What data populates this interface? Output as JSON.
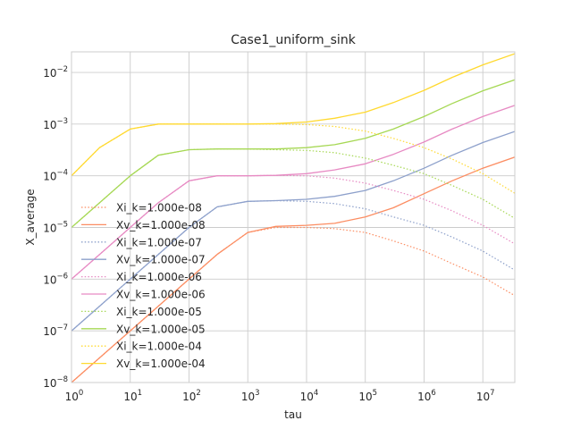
{
  "chart_data": {
    "type": "line",
    "title": "Case1_uniform_sink",
    "xlabel": "tau",
    "ylabel": "X_average",
    "xscale": "log",
    "yscale": "log",
    "xlim": [
      1,
      35000000
    ],
    "ylim": [
      1e-08,
      0.025
    ],
    "grid": true,
    "legend_position": "center-left",
    "x_ticks": [
      {
        "base": "10",
        "exp": "0"
      },
      {
        "base": "10",
        "exp": "1"
      },
      {
        "base": "10",
        "exp": "2"
      },
      {
        "base": "10",
        "exp": "3"
      },
      {
        "base": "10",
        "exp": "4"
      },
      {
        "base": "10",
        "exp": "5"
      },
      {
        "base": "10",
        "exp": "6"
      },
      {
        "base": "10",
        "exp": "7"
      }
    ],
    "y_ticks": [
      {
        "base": "10",
        "exp": "−8"
      },
      {
        "base": "10",
        "exp": "−7"
      },
      {
        "base": "10",
        "exp": "−6"
      },
      {
        "base": "10",
        "exp": "−5"
      },
      {
        "base": "10",
        "exp": "−4"
      },
      {
        "base": "10",
        "exp": "−3"
      },
      {
        "base": "10",
        "exp": "−2"
      }
    ],
    "x_tick_values": [
      1,
      10,
      100,
      1000,
      10000,
      100000,
      1000000,
      10000000
    ],
    "y_tick_values": [
      1e-08,
      1e-07,
      1e-06,
      1e-05,
      0.0001,
      0.001,
      0.01
    ],
    "x": [
      1,
      3,
      10,
      30,
      100,
      300,
      1000,
      3000,
      10000,
      30000,
      100000,
      300000,
      1000000,
      3000000,
      10000000,
      35000000
    ],
    "series": [
      {
        "name": "Xi_k=1.000e-08",
        "style": "dotted",
        "color": "#fc8d62",
        "values": [
          1e-08,
          3e-08,
          1e-07,
          3e-07,
          1e-06,
          3e-06,
          8e-06,
          1e-05,
          1e-05,
          9.5e-06,
          8e-06,
          5.5e-06,
          3.5e-06,
          2e-06,
          1.1e-06,
          4.8e-07
        ]
      },
      {
        "name": "Xv_k=1.000e-08",
        "style": "solid",
        "color": "#fc8d62",
        "values": [
          1e-08,
          3e-08,
          1e-07,
          3e-07,
          1e-06,
          3e-06,
          8e-06,
          1.05e-05,
          1.1e-05,
          1.2e-05,
          1.6e-05,
          2.4e-05,
          4.5e-05,
          8e-05,
          0.00014,
          0.00023
        ]
      },
      {
        "name": "Xi_k=1.000e-07",
        "style": "dotted",
        "color": "#8da0cb",
        "values": [
          1e-07,
          3e-07,
          1e-06,
          3e-06,
          1e-05,
          2.5e-05,
          3.2e-05,
          3.3e-05,
          3.2e-05,
          2.9e-05,
          2.3e-05,
          1.6e-05,
          1.1e-05,
          6.5e-06,
          3.5e-06,
          1.5e-06
        ]
      },
      {
        "name": "Xv_k=1.000e-07",
        "style": "solid",
        "color": "#8da0cb",
        "values": [
          1e-07,
          3e-07,
          1e-06,
          3e-06,
          1e-05,
          2.5e-05,
          3.2e-05,
          3.3e-05,
          3.5e-05,
          4e-05,
          5.2e-05,
          8e-05,
          0.00014,
          0.00025,
          0.00044,
          0.00072
        ]
      },
      {
        "name": "Xi_k=1.000e-06",
        "style": "dotted",
        "color": "#e78ac3",
        "values": [
          1e-06,
          3e-06,
          1e-05,
          3e-05,
          8e-05,
          0.0001,
          0.0001,
          0.000102,
          0.0001,
          9e-05,
          7.2e-05,
          5.2e-05,
          3.5e-05,
          2.1e-05,
          1.1e-05,
          4.8e-06
        ]
      },
      {
        "name": "Xv_k=1.000e-06",
        "style": "solid",
        "color": "#e78ac3",
        "values": [
          1e-06,
          3e-06,
          1e-05,
          3e-05,
          8e-05,
          0.0001,
          0.0001,
          0.000102,
          0.00011,
          0.00013,
          0.00017,
          0.00026,
          0.00045,
          0.0008,
          0.0014,
          0.0023
        ]
      },
      {
        "name": "Xi_k=1.000e-05",
        "style": "dotted",
        "color": "#a6d854",
        "values": [
          1e-05,
          3e-05,
          0.0001,
          0.00025,
          0.00032,
          0.00033,
          0.00033,
          0.00032,
          0.00031,
          0.00028,
          0.00022,
          0.00016,
          0.00011,
          6.5e-05,
          3.5e-05,
          1.5e-05
        ]
      },
      {
        "name": "Xv_k=1.000e-05",
        "style": "solid",
        "color": "#a6d854",
        "values": [
          1e-05,
          3e-05,
          0.0001,
          0.00025,
          0.00032,
          0.00033,
          0.00033,
          0.00033,
          0.00035,
          0.0004,
          0.00053,
          0.0008,
          0.0014,
          0.0025,
          0.0044,
          0.0072
        ]
      },
      {
        "name": "Xi_k=1.000e-04",
        "style": "dotted",
        "color": "#ffd92f",
        "values": [
          0.0001,
          0.00035,
          0.0008,
          0.001,
          0.001,
          0.001,
          0.001,
          0.001,
          0.00098,
          0.0009,
          0.00073,
          0.00053,
          0.00035,
          0.00021,
          0.00011,
          4.6e-05
        ]
      },
      {
        "name": "Xv_k=1.000e-04",
        "style": "solid",
        "color": "#ffd92f",
        "values": [
          0.0001,
          0.00035,
          0.0008,
          0.001,
          0.001,
          0.001,
          0.001,
          0.00102,
          0.0011,
          0.0013,
          0.0017,
          0.0026,
          0.0045,
          0.008,
          0.014,
          0.023
        ]
      }
    ]
  }
}
